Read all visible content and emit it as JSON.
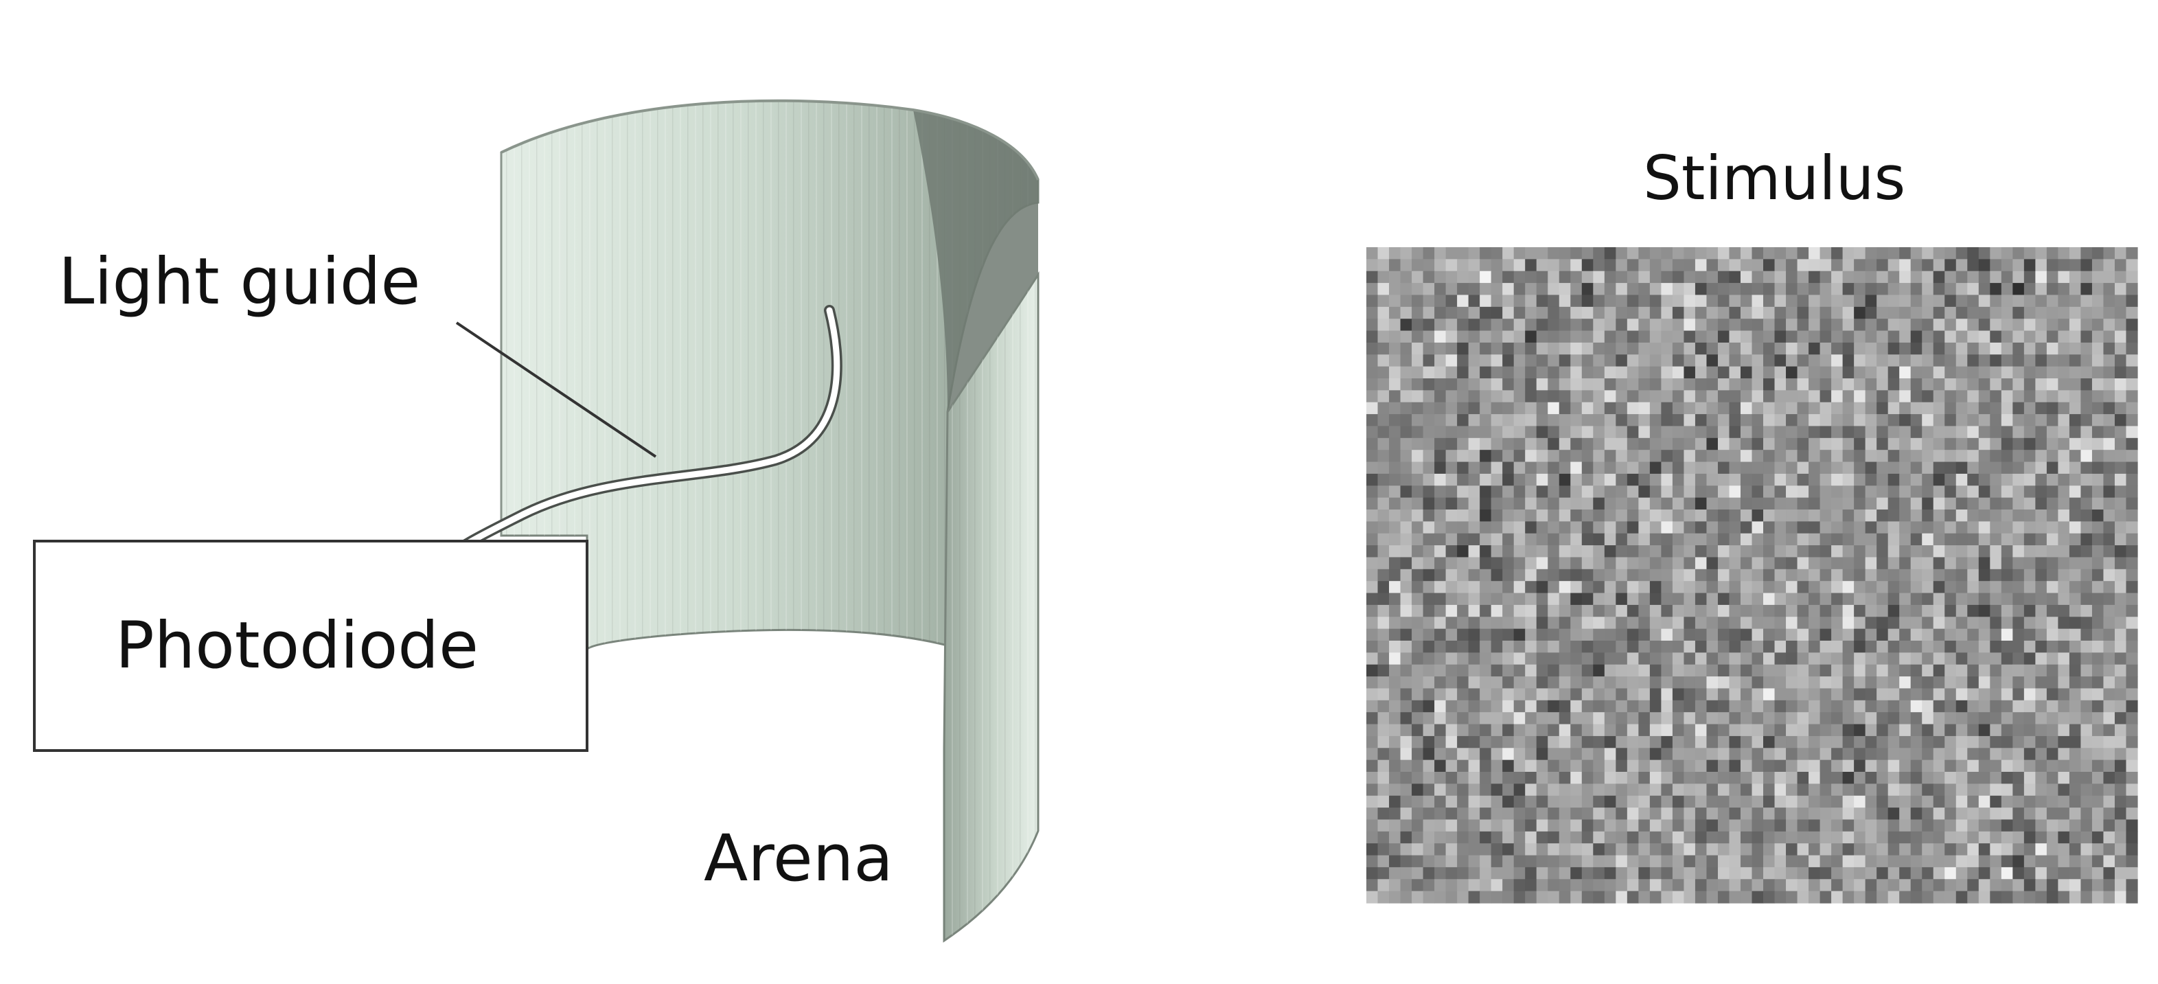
{
  "labels": {
    "light_guide": "Light guide",
    "photodiode": "Photodiode",
    "arena": "Arena",
    "stimulus": "Stimulus"
  },
  "colors": {
    "arena_light": "#e2ece4",
    "arena_mid": "#b7c7ba",
    "arena_dark": "#7f8a82",
    "interior_dark": "#6e7770",
    "outline": "#7a857c",
    "text": "#111111",
    "box_stroke": "#333333"
  },
  "stimulus": {
    "grid_cols": 68,
    "grid_rows": 55,
    "pattern": "random gray noise"
  }
}
